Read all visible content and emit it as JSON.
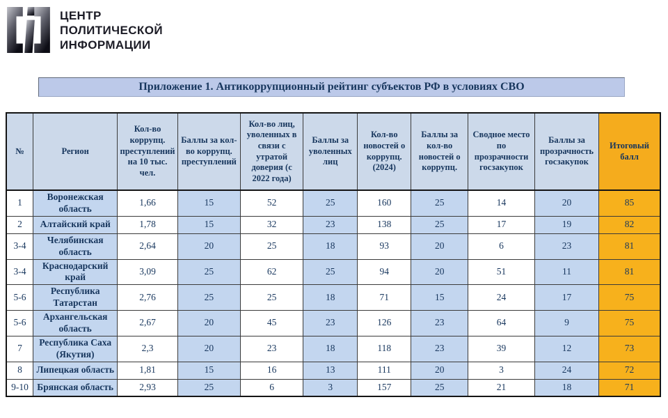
{
  "logo": {
    "icon": "cpi-brackets-logo",
    "text_lines": [
      "ЦЕНТР",
      "ПОЛИТИЧЕСКОЙ",
      "ИНФОРМАЦИИ"
    ]
  },
  "title": "Приложение 1. Антикоррупционный рейтинг субъектов РФ в условиях СВО",
  "table": {
    "columns": [
      {
        "key": "rank",
        "label": "№",
        "width": "4.1%"
      },
      {
        "key": "region",
        "label": "Регион",
        "width": "12.9%"
      },
      {
        "key": "crimes",
        "label": "Кол-во коррупц. преступлений на 10 тыс. чел.",
        "width": "9.2%"
      },
      {
        "key": "crimes-points",
        "label": "Баллы за кол-во коррупц. преступлений",
        "width": "9.6%"
      },
      {
        "key": "dismissed",
        "label": "Кол-во лиц, уволенных в связи с утратой доверия (с 2022 года)",
        "width": "9.6%"
      },
      {
        "key": "dismissed-points",
        "label": "Баллы за уволенных лиц",
        "width": "8.3%"
      },
      {
        "key": "news",
        "label": "Кол-во новостей о коррупц. (2024)",
        "width": "8.2%"
      },
      {
        "key": "news-points",
        "label": "Баллы за кол-во новостей о коррупц.",
        "width": "8.7%"
      },
      {
        "key": "procurement",
        "label": "Сводное место по прозрачности госзакупок",
        "width": "10.2%"
      },
      {
        "key": "procurement-points",
        "label": "Баллы за прозрачность госзакупок",
        "width": "9.8%"
      },
      {
        "key": "total",
        "label": "Итоговый балл",
        "width": "9.4%"
      }
    ],
    "rows": [
      [
        "1",
        "Воронежская область",
        "1,66",
        "15",
        "52",
        "25",
        "160",
        "25",
        "14",
        "20",
        "85"
      ],
      [
        "2",
        "Алтайский край",
        "1,78",
        "15",
        "32",
        "23",
        "138",
        "25",
        "17",
        "19",
        "82"
      ],
      [
        "3-4",
        "Челябинская область",
        "2,64",
        "20",
        "25",
        "18",
        "93",
        "20",
        "6",
        "23",
        "81"
      ],
      [
        "3-4",
        "Краснодарский край",
        "3,09",
        "25",
        "62",
        "25",
        "94",
        "20",
        "51",
        "11",
        "81"
      ],
      [
        "5-6",
        "Республика Татарстан",
        "2,76",
        "25",
        "25",
        "18",
        "71",
        "15",
        "24",
        "17",
        "75"
      ],
      [
        "5-6",
        "Архангельская область",
        "2,67",
        "20",
        "45",
        "23",
        "126",
        "23",
        "64",
        "9",
        "75"
      ],
      [
        "7",
        "Республика Саха (Якутия)",
        "2,3",
        "20",
        "23",
        "18",
        "118",
        "23",
        "39",
        "12",
        "73"
      ],
      [
        "8",
        "Липецкая область",
        "1,81",
        "15",
        "16",
        "13",
        "111",
        "20",
        "3",
        "24",
        "72"
      ],
      [
        "9-10",
        "Брянская область",
        "2,93",
        "25",
        "6",
        "3",
        "157",
        "25",
        "21",
        "18",
        "71"
      ]
    ]
  },
  "colors": {
    "header_blue": "#ccd9ea",
    "row_blue": "#c3d6ef",
    "accent_orange": "#f5ac1d",
    "title_bar_blue": "#bcc9e9",
    "text_navy": "#17365d"
  }
}
